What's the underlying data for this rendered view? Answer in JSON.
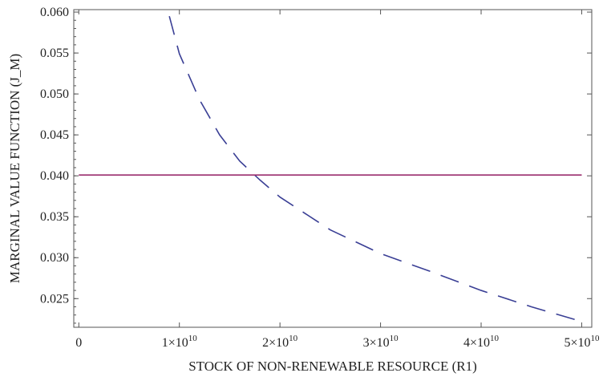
{
  "chart_data": {
    "type": "line",
    "title": "",
    "xlabel": "STOCK OF NON-RENEWABLE RESOURCE (R1)",
    "ylabel": "MARGINAL VALUE FUNCTION (J_M)",
    "xlim": [
      -500000000.0,
      51000000000.0
    ],
    "ylim": [
      0.0215,
      0.0603
    ],
    "grid": false,
    "legend": "none",
    "x_ticks": [
      {
        "value": 0,
        "mantissa": "0",
        "exp": ""
      },
      {
        "value": 10000000000.0,
        "mantissa": "1×10",
        "exp": "10"
      },
      {
        "value": 20000000000.0,
        "mantissa": "2×10",
        "exp": "10"
      },
      {
        "value": 30000000000.0,
        "mantissa": "3×10",
        "exp": "10"
      },
      {
        "value": 40000000000.0,
        "mantissa": "4×10",
        "exp": "10"
      },
      {
        "value": 50000000000.0,
        "mantissa": "5×10",
        "exp": "10"
      }
    ],
    "y_ticks": [
      {
        "value": 0.025,
        "label": "0.025"
      },
      {
        "value": 0.03,
        "label": "0.030"
      },
      {
        "value": 0.035,
        "label": "0.035"
      },
      {
        "value": 0.04,
        "label": "0.040"
      },
      {
        "value": 0.045,
        "label": "0.045"
      },
      {
        "value": 0.05,
        "label": "0.050"
      },
      {
        "value": 0.055,
        "label": "0.055"
      },
      {
        "value": 0.06,
        "label": "0.060"
      }
    ],
    "series": [
      {
        "color": "#3a3f95",
        "style": "dashed",
        "x": [
          9000000000.0,
          10000000000.0,
          12000000000.0,
          14000000000.0,
          16000000000.0,
          18000000000.0,
          20000000000.0,
          25000000000.0,
          30000000000.0,
          35000000000.0,
          40000000000.0,
          45000000000.0,
          50000000000.0
        ],
        "y": [
          0.0595,
          0.0549,
          0.0493,
          0.045,
          0.0418,
          0.0395,
          0.0374,
          0.0334,
          0.0305,
          0.0283,
          0.026,
          0.024,
          0.0222
        ]
      },
      {
        "color": "#9b2d6e",
        "style": "solid",
        "x": [
          0,
          50000000000.0
        ],
        "y": [
          0.0401,
          0.0401
        ]
      }
    ]
  }
}
